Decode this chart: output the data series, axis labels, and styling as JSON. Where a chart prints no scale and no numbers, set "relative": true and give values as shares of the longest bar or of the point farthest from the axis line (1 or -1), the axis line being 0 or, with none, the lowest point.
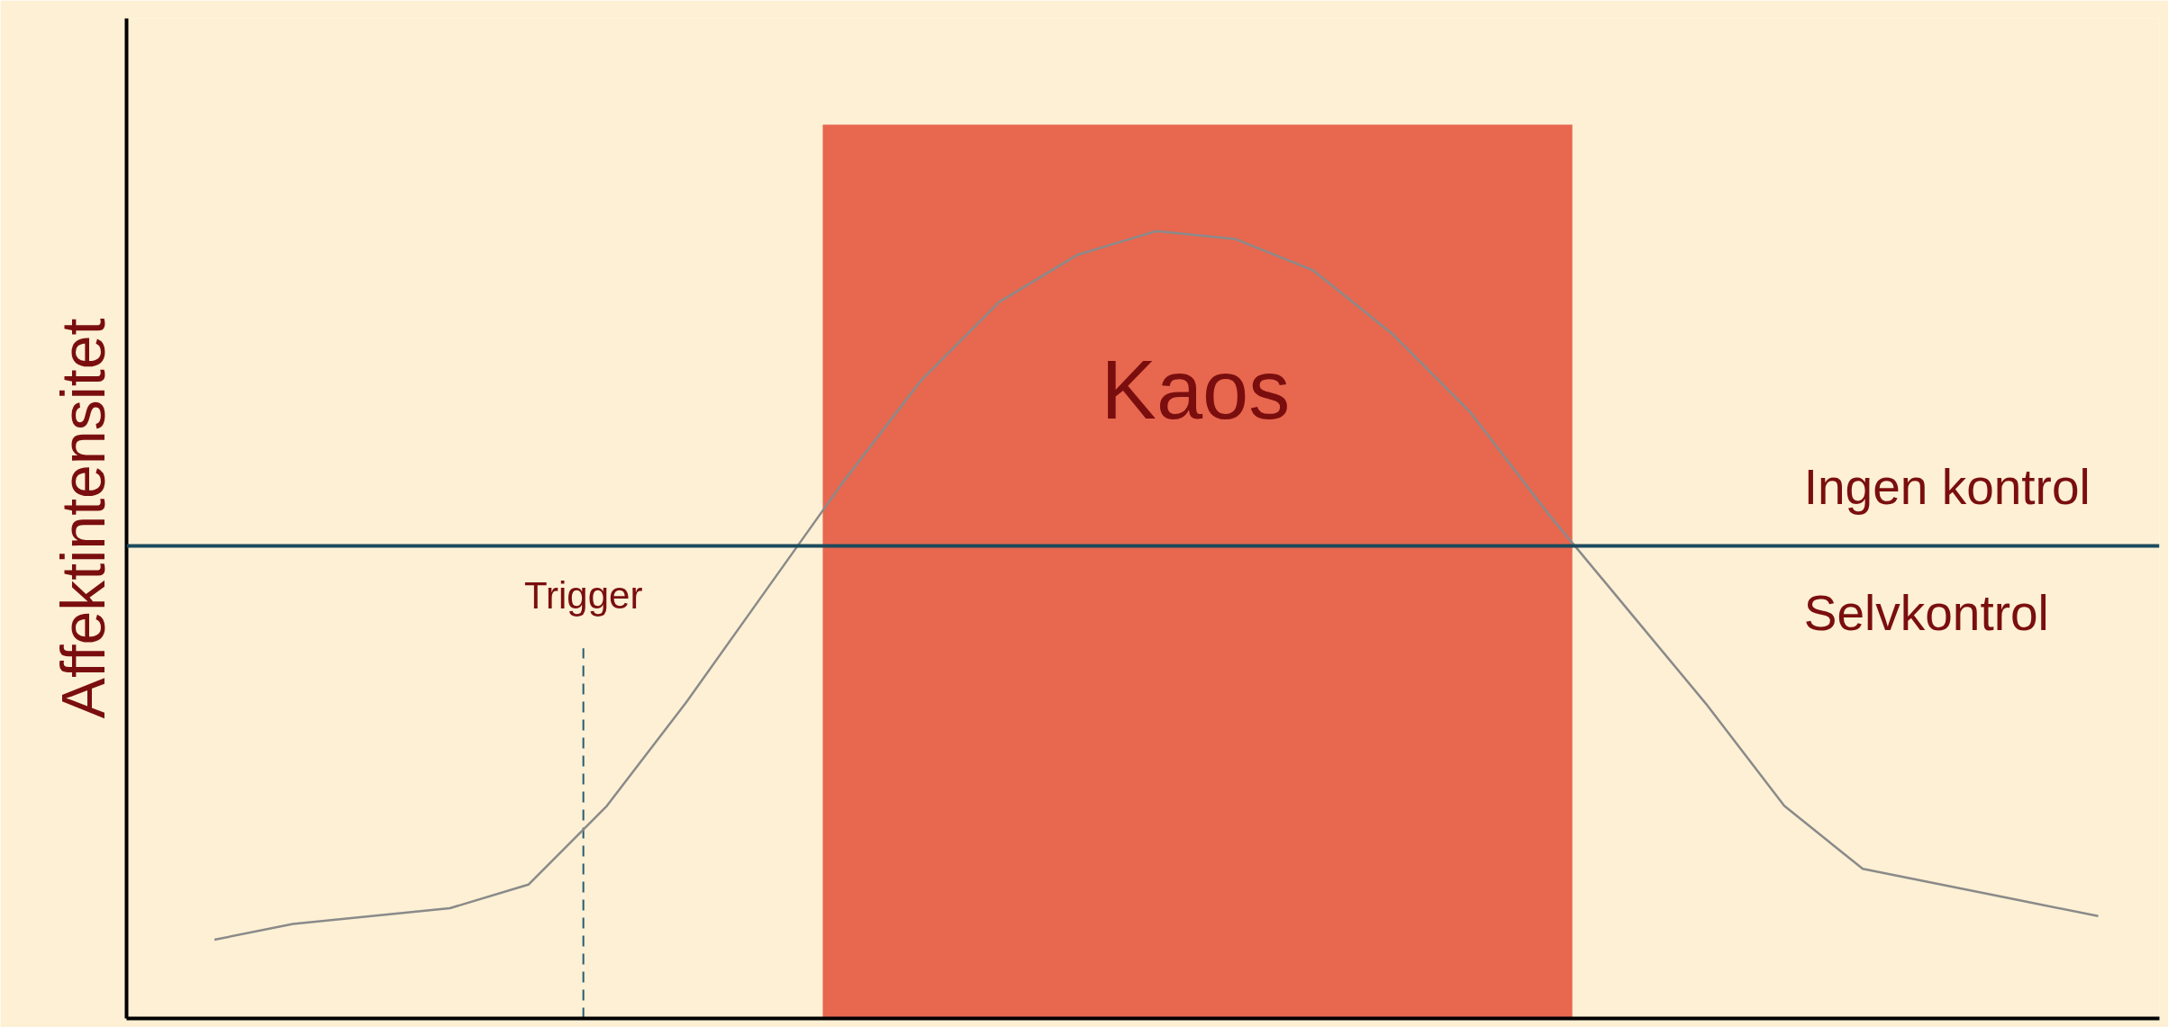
{
  "chart_data": {
    "type": "line",
    "relative": true,
    "ylabel": "Affektintensitet",
    "tick_labels": false,
    "grid": false,
    "marker": "none",
    "line_style": "solid",
    "categories": [
      null,
      null,
      null,
      null,
      null,
      null,
      null,
      null,
      null,
      null,
      null,
      null,
      null,
      null,
      null,
      null,
      null,
      null,
      null,
      null,
      null,
      null,
      null,
      null,
      null
    ],
    "series": [
      {
        "color": "#8a8a8a",
        "values": [
          0.1,
          0.12,
          0.13,
          0.14,
          0.17,
          0.27,
          0.4,
          0.54,
          0.68,
          0.81,
          0.91,
          0.97,
          1.0,
          0.99,
          0.95,
          0.87,
          0.77,
          0.64,
          0.52,
          0.4,
          0.27,
          0.19,
          0.17,
          0.15,
          0.13
        ]
      }
    ],
    "ref_lines": [
      {
        "axis": "y",
        "value": 0.6,
        "label": "Ingen kontrol",
        "color": "#1d4a5c",
        "line_style": "solid"
      }
    ],
    "annotations": [
      "Selvkontrol",
      "Kaos",
      "Trigger"
    ]
  }
}
